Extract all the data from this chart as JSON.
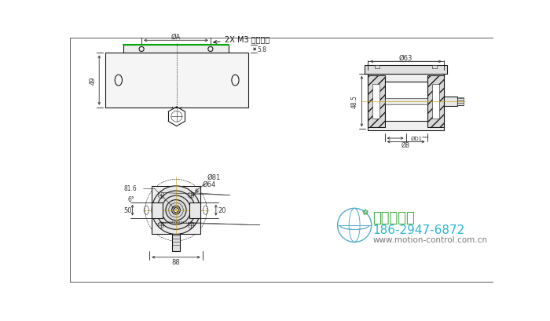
{
  "company_name": "西安德伍拓",
  "phone": "186-2947-6872",
  "website": "www.motion-control.com.cn",
  "annotation_2xm3": "2X M3 固定螺钉",
  "dim_A": "ØA",
  "dim_63": "Ø63",
  "dim_81": "Ø81",
  "dim_64": "Ø64",
  "dim_49": "49",
  "dim_5p8": "5.8",
  "dim_48p5": "48.5",
  "dim_20": "20",
  "dim_50": "50",
  "dim_88": "88",
  "dim_B": "ØB",
  "dim_D1": "ØD1¹ᵃⁿ",
  "dim_81_6": "81.6",
  "dim_6_6": "6°",
  "line_color": "#1a1a1a",
  "green_line": "#00aa00",
  "bg_color": "#ffffff",
  "company_color": "#3daa3d",
  "phone_color": "#2ab5d4",
  "website_color": "#777777",
  "hatch_color": "#aaaaaa",
  "dim_color": "#333333"
}
